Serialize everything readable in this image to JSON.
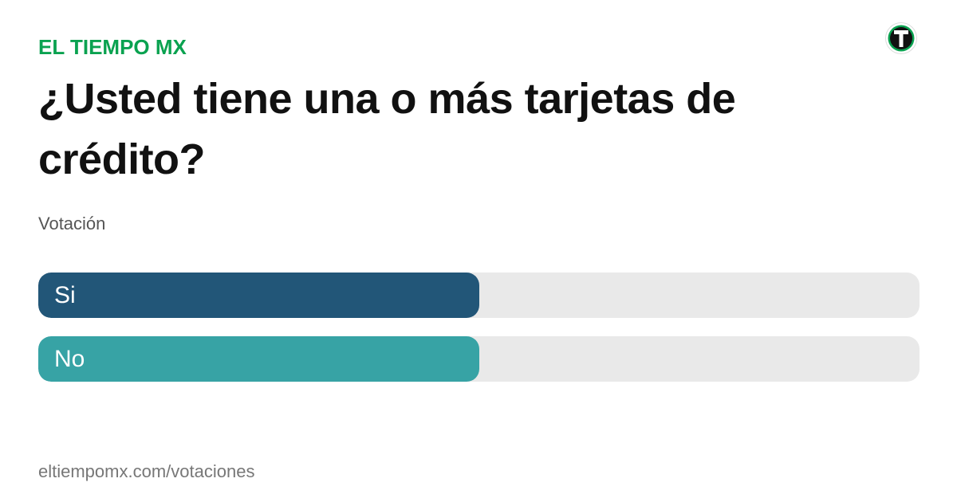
{
  "brand": "EL TIEMPO MX",
  "logo_icon": "el-tiempo-logo-icon",
  "question": "¿Usted tiene una o más tarjetas de crédito?",
  "subtitle": "Votación",
  "options": [
    {
      "label": "Si",
      "share": 0.5,
      "color": "#225678"
    },
    {
      "label": "No",
      "share": 0.5,
      "color": "#37a3a5"
    }
  ],
  "footer_url": "eltiempomx.com/votaciones",
  "colors": {
    "brand": "#0aa250",
    "track": "#e9e9e9"
  }
}
